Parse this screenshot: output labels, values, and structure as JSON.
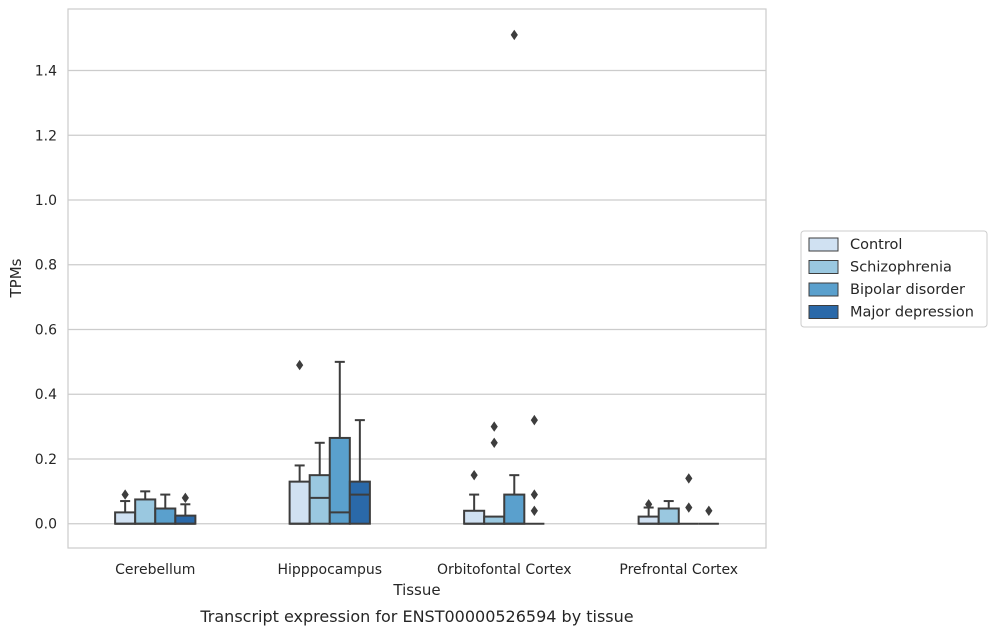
{
  "chart_data": {
    "type": "boxplot",
    "title": "",
    "caption": "Transcript expression for ENST00000526594 by tissue",
    "xlabel": "Tissue",
    "ylabel": "TPMs",
    "ylim": [
      -0.075,
      1.59
    ],
    "yticks": [
      0.0,
      0.2,
      0.4,
      0.6,
      0.8,
      1.0,
      1.2,
      1.4
    ],
    "ytick_labels": [
      "0.0",
      "0.2",
      "0.4",
      "0.6",
      "0.8",
      "1.0",
      "1.2",
      "1.4"
    ],
    "grid": "horizontal",
    "legend_position": "right",
    "categories": [
      "Cerebellum",
      "Hipppocampus",
      "Orbitofontal Cortex",
      "Prefrontal Cortex"
    ],
    "series": [
      {
        "name": "Control",
        "color": "#d0e1f2",
        "boxes": [
          {
            "q1": 0.0,
            "median": 0.0,
            "q3": 0.035,
            "whisker_low": 0.0,
            "whisker_high": 0.07,
            "outliers": [
              0.09
            ]
          },
          {
            "q1": 0.0,
            "median": 0.0,
            "q3": 0.13,
            "whisker_low": 0.0,
            "whisker_high": 0.18,
            "outliers": [
              0.49
            ]
          },
          {
            "q1": 0.0,
            "median": 0.0,
            "q3": 0.04,
            "whisker_low": 0.0,
            "whisker_high": 0.09,
            "outliers": [
              0.15
            ]
          },
          {
            "q1": 0.0,
            "median": 0.0,
            "q3": 0.022,
            "whisker_low": 0.0,
            "whisker_high": 0.05,
            "outliers": [
              0.06
            ]
          }
        ]
      },
      {
        "name": "Schizophrenia",
        "color": "#9ac8e0",
        "boxes": [
          {
            "q1": 0.0,
            "median": 0.0,
            "q3": 0.075,
            "whisker_low": 0.0,
            "whisker_high": 0.1,
            "outliers": []
          },
          {
            "q1": 0.0,
            "median": 0.08,
            "q3": 0.15,
            "whisker_low": 0.0,
            "whisker_high": 0.25,
            "outliers": []
          },
          {
            "q1": 0.0,
            "median": 0.0,
            "q3": 0.022,
            "whisker_low": 0.0,
            "whisker_high": 0.022,
            "outliers": [
              0.25,
              0.3
            ]
          },
          {
            "q1": 0.0,
            "median": 0.0,
            "q3": 0.047,
            "whisker_low": 0.0,
            "whisker_high": 0.07,
            "outliers": []
          }
        ]
      },
      {
        "name": "Bipolar disorder",
        "color": "#5aa0cd",
        "boxes": [
          {
            "q1": 0.0,
            "median": 0.0,
            "q3": 0.047,
            "whisker_low": 0.0,
            "whisker_high": 0.09,
            "outliers": []
          },
          {
            "q1": 0.0,
            "median": 0.035,
            "q3": 0.265,
            "whisker_low": 0.0,
            "whisker_high": 0.5,
            "outliers": []
          },
          {
            "q1": 0.0,
            "median": 0.0,
            "q3": 0.09,
            "whisker_low": 0.0,
            "whisker_high": 0.15,
            "outliers": [
              1.51
            ]
          },
          {
            "q1": 0.0,
            "median": 0.0,
            "q3": 0.0,
            "whisker_low": 0.0,
            "whisker_high": 0.0,
            "outliers": [
              0.05,
              0.14
            ]
          }
        ]
      },
      {
        "name": "Major depression",
        "color": "#2a69a9",
        "boxes": [
          {
            "q1": 0.0,
            "median": 0.0,
            "q3": 0.025,
            "whisker_low": 0.0,
            "whisker_high": 0.06,
            "outliers": [
              0.08
            ]
          },
          {
            "q1": 0.0,
            "median": 0.09,
            "q3": 0.13,
            "whisker_low": 0.0,
            "whisker_high": 0.32,
            "outliers": []
          },
          {
            "q1": 0.0,
            "median": 0.0,
            "q3": 0.0,
            "whisker_low": 0.0,
            "whisker_high": 0.0,
            "outliers": [
              0.04,
              0.09,
              0.32
            ]
          },
          {
            "q1": 0.0,
            "median": 0.0,
            "q3": 0.0,
            "whisker_low": 0.0,
            "whisker_high": 0.0,
            "outliers": [
              0.04
            ]
          }
        ]
      }
    ]
  }
}
